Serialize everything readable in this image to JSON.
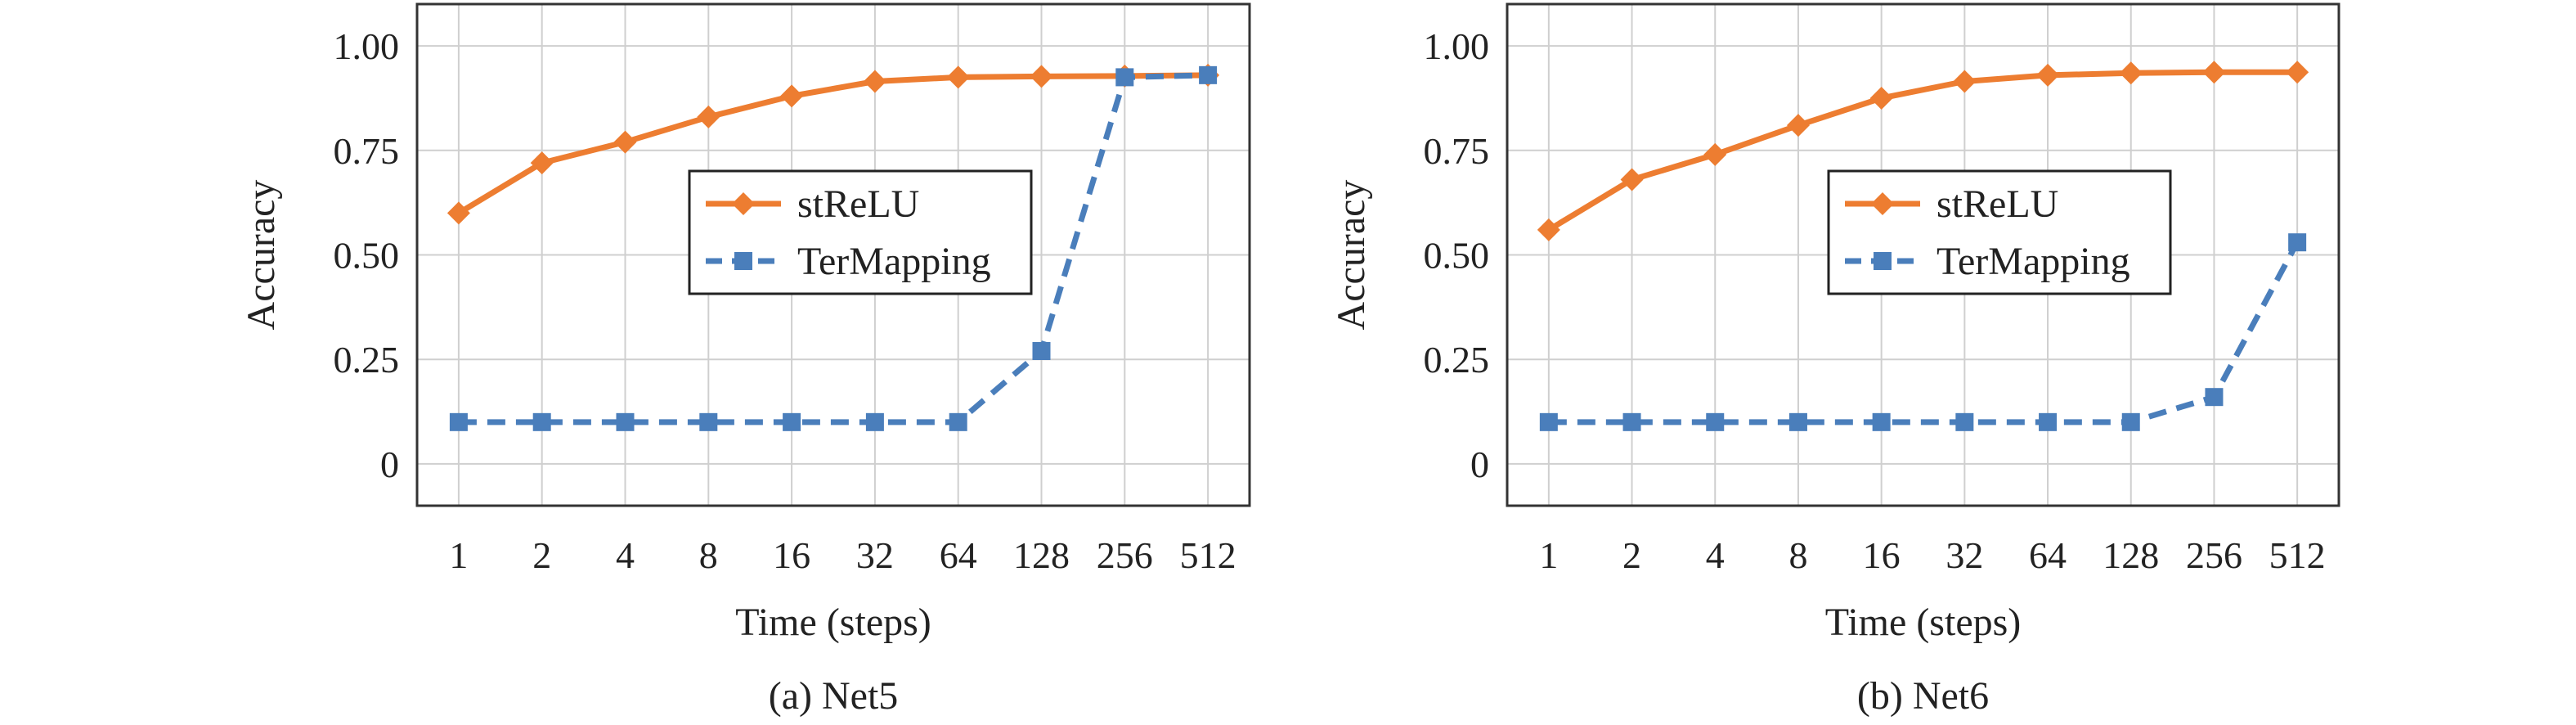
{
  "chart_data": [
    {
      "type": "line",
      "caption": "(a) Net5",
      "xlabel": "Time (steps)",
      "ylabel": "Accuracy",
      "categories": [
        "1",
        "2",
        "4",
        "8",
        "16",
        "32",
        "64",
        "128",
        "256",
        "512"
      ],
      "yticks": [
        "0",
        "0.25",
        "0.50",
        "0.75",
        "1.00"
      ],
      "ylim": [
        -0.1,
        1.1
      ],
      "grid": true,
      "legend_position": "center",
      "series": [
        {
          "name": "stReLU",
          "color": "#ed7d31",
          "marker": "diamond",
          "line_style": "solid",
          "values": [
            0.6,
            0.72,
            0.77,
            0.83,
            0.88,
            0.915,
            0.925,
            0.927,
            0.928,
            0.93
          ]
        },
        {
          "name": "TerMapping",
          "color": "#4a7ebb",
          "marker": "square",
          "line_style": "dashed",
          "values": [
            0.1,
            0.1,
            0.1,
            0.1,
            0.1,
            0.1,
            0.1,
            0.27,
            0.925,
            0.93
          ]
        }
      ]
    },
    {
      "type": "line",
      "caption": "(b) Net6",
      "xlabel": "Time (steps)",
      "ylabel": "Accuracy",
      "categories": [
        "1",
        "2",
        "4",
        "8",
        "16",
        "32",
        "64",
        "128",
        "256",
        "512"
      ],
      "yticks": [
        "0",
        "0.25",
        "0.50",
        "0.75",
        "1.00"
      ],
      "ylim": [
        -0.1,
        1.1
      ],
      "grid": true,
      "legend_position": "center",
      "series": [
        {
          "name": "stReLU",
          "color": "#ed7d31",
          "marker": "diamond",
          "line_style": "solid",
          "values": [
            0.56,
            0.68,
            0.74,
            0.81,
            0.875,
            0.915,
            0.93,
            0.935,
            0.937,
            0.937
          ]
        },
        {
          "name": "TerMapping",
          "color": "#4a7ebb",
          "marker": "square",
          "line_style": "dashed",
          "values": [
            0.1,
            0.1,
            0.1,
            0.1,
            0.1,
            0.1,
            0.1,
            0.1,
            0.16,
            0.53
          ]
        }
      ]
    }
  ]
}
